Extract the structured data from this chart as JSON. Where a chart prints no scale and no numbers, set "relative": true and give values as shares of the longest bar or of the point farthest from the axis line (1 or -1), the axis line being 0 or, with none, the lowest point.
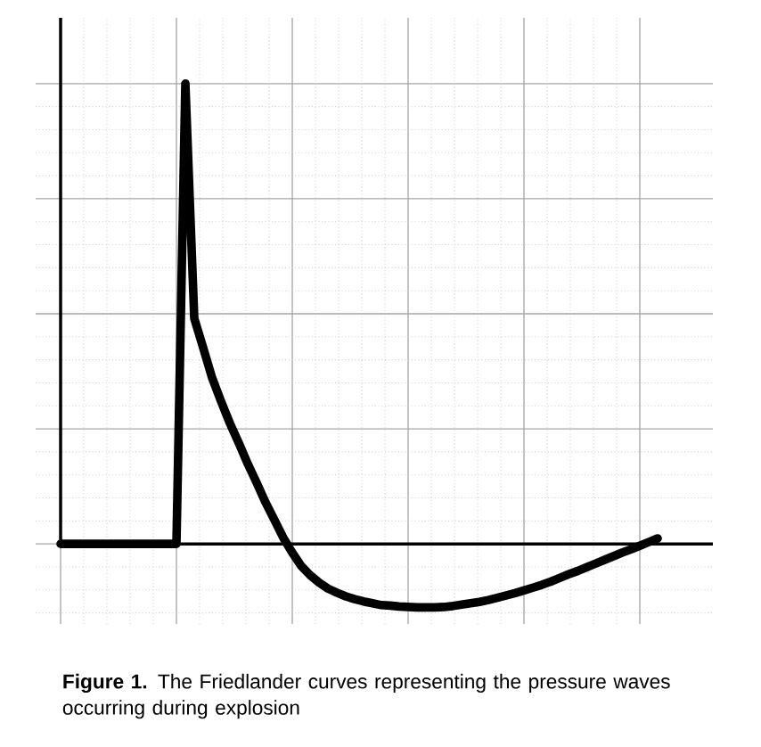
{
  "chart_data": {
    "type": "line",
    "relative": true,
    "grid": true,
    "color": "#000000",
    "annotations": [
      "**Figure 1.** The Friedlander curves representing the pressure waves occurring during explosion"
    ],
    "categories": [
      null,
      null,
      null,
      null,
      null,
      null,
      null,
      null,
      null,
      null,
      null,
      null,
      null,
      null,
      null,
      null,
      null,
      null,
      null,
      null,
      null,
      null,
      null,
      null,
      null,
      null,
      null,
      null,
      null,
      null,
      null,
      null,
      null,
      null,
      null,
      null,
      null,
      null,
      null,
      null,
      null,
      null,
      null,
      null,
      null,
      null,
      null,
      null,
      null,
      null,
      null,
      null,
      null,
      null,
      null,
      null,
      null,
      null,
      null,
      null,
      null,
      null,
      null,
      null,
      null,
      null,
      null,
      null
    ],
    "values": [
      0,
      0,
      0,
      0,
      0,
      0,
      0,
      0,
      0,
      0,
      0,
      0,
      0,
      0,
      1,
      0.49,
      0.426,
      0.361,
      0.31,
      0.262,
      0.219,
      0.174,
      0.133,
      0.09,
      0.052,
      0.013,
      -0.019,
      -0.048,
      -0.068,
      -0.084,
      -0.097,
      -0.106,
      -0.114,
      -0.12,
      -0.125,
      -0.129,
      -0.133,
      -0.134,
      -0.136,
      -0.137,
      -0.138,
      -0.138,
      -0.138,
      -0.137,
      -0.135,
      -0.132,
      -0.129,
      -0.126,
      -0.122,
      -0.117,
      -0.112,
      -0.107,
      -0.101,
      -0.095,
      -0.089,
      -0.082,
      -0.074,
      -0.066,
      -0.059,
      -0.051,
      -0.043,
      -0.035,
      -0.027,
      -0.019,
      -0.012,
      -0.004,
      0.004,
      0.012
    ]
  }
}
